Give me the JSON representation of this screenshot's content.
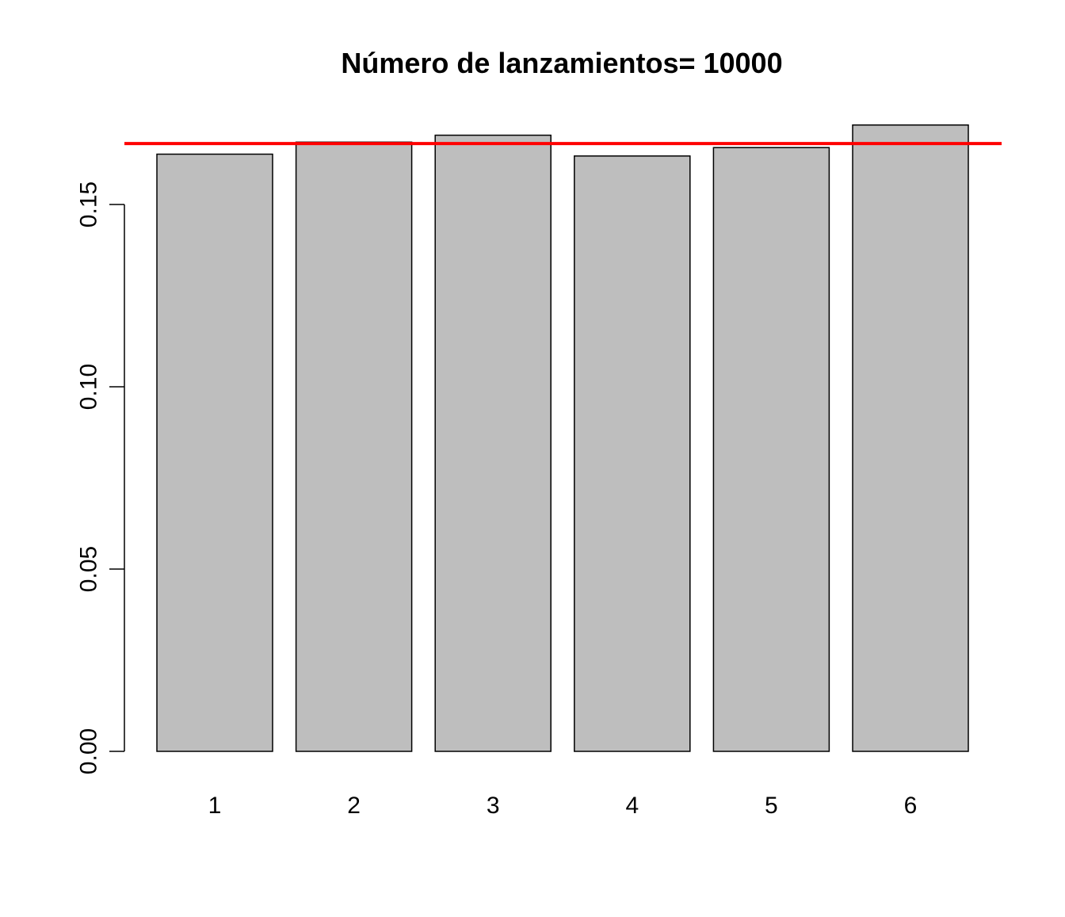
{
  "chart_data": {
    "type": "bar",
    "title": "Número de lanzamientos= 10000",
    "xlabel": "",
    "ylabel": "",
    "categories": [
      "1",
      "2",
      "3",
      "4",
      "5",
      "6"
    ],
    "values": [
      0.1638,
      0.1671,
      0.169,
      0.1633,
      0.1656,
      0.1718
    ],
    "ylim": [
      0,
      0.1765
    ],
    "yticks": [
      "0.00",
      "0.05",
      "0.10",
      "0.15"
    ],
    "ytick_values": [
      0,
      0.05,
      0.1,
      0.15
    ],
    "reference_line": {
      "y": 0.1667,
      "color": "#ff0000"
    },
    "bar_fill": "#bebebe",
    "bar_stroke": "#000000",
    "grid": false,
    "legend": "none"
  }
}
